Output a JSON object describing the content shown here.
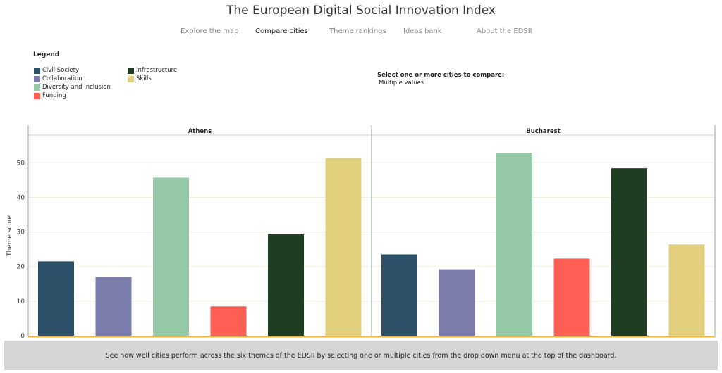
{
  "header": {
    "title": "The European Digital Social Innovation Index"
  },
  "nav": {
    "items": [
      {
        "label": "Explore the map",
        "active": false
      },
      {
        "label": "Compare cities",
        "active": true
      },
      {
        "label": "Theme rankings",
        "active": false
      },
      {
        "label": "Ideas bank",
        "active": false
      },
      {
        "label": "About the EDSII",
        "active": false
      }
    ]
  },
  "legend": {
    "title": "Legend",
    "items": [
      {
        "label": "Civil Society",
        "color": "#2b5068"
      },
      {
        "label": "Collaboration",
        "color": "#7a7dab"
      },
      {
        "label": "Diversity and Inclusion",
        "color": "#93c9a7"
      },
      {
        "label": "Funding",
        "color": "#fe5f55"
      },
      {
        "label": "Infrastructure",
        "color": "#1f3d20"
      },
      {
        "label": "Skills",
        "color": "#e3d07f"
      }
    ]
  },
  "filter": {
    "label": "Select one or more cities to compare:",
    "value": "Multiple values"
  },
  "chart_data": {
    "type": "bar",
    "ylabel": "Theme score",
    "ylim": [
      0,
      58
    ],
    "yticks": [
      0,
      10,
      20,
      30,
      40,
      50
    ],
    "categories": [
      "Civil Society",
      "Collaboration",
      "Diversity and Inclusion",
      "Funding",
      "Infrastructure",
      "Skills"
    ],
    "panels": [
      {
        "title": "Athens",
        "values": [
          21.5,
          17,
          45.7,
          8.5,
          29.3,
          51.4
        ]
      },
      {
        "title": "Bucharest",
        "values": [
          23.5,
          19.2,
          52.9,
          22.3,
          48.4,
          26.4
        ]
      }
    ]
  },
  "footer": {
    "text": "See how well cities perform across the six themes of the EDSII by selecting one or multiple cities from the drop down menu at the top of the dashboard."
  }
}
